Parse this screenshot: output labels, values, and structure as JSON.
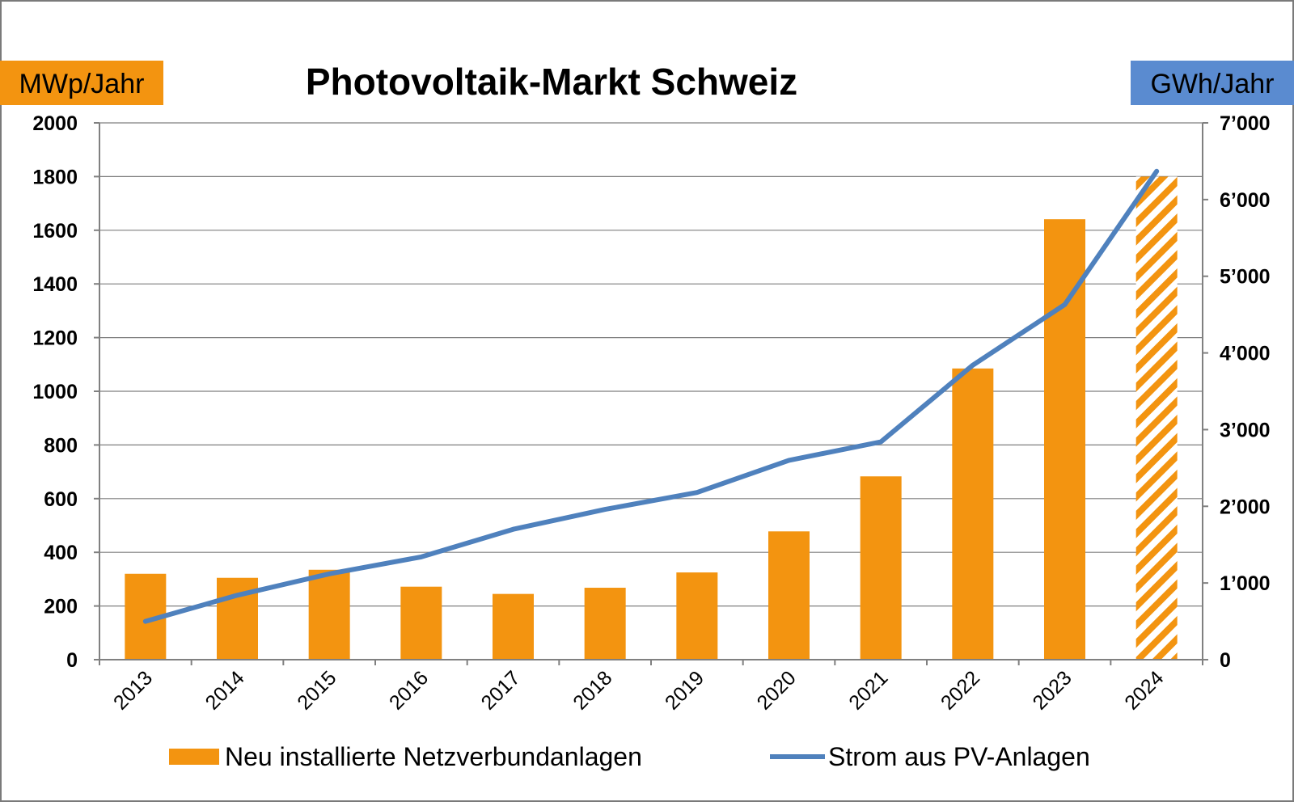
{
  "chart_data": {
    "type": "bar",
    "title": "Photovoltaik-Markt Schweiz",
    "categories": [
      "2013",
      "2014",
      "2015",
      "2016",
      "2017",
      "2018",
      "2019",
      "2020",
      "2021",
      "2022",
      "2023",
      "2024"
    ],
    "left_axis": {
      "label": "MWp/Jahr",
      "range": [
        0,
        2000
      ],
      "ticks": [
        "0",
        "200",
        "400",
        "600",
        "800",
        "1000",
        "1200",
        "1400",
        "1600",
        "1800",
        "2000"
      ]
    },
    "right_axis": {
      "label": "GWh/Jahr",
      "range": [
        0,
        7000
      ],
      "ticks": [
        "0",
        "1’000",
        "2’000",
        "3’000",
        "4’000",
        "5’000",
        "6’000",
        "7’000"
      ]
    },
    "series": [
      {
        "name": "Neu installierte Netzverbundanlagen",
        "type": "bar",
        "axis": "left",
        "color": "#F39410",
        "values": [
          320,
          305,
          335,
          272,
          245,
          268,
          325,
          478,
          683,
          1085,
          1641,
          1800
        ],
        "hatched_categories": [
          "2024"
        ]
      },
      {
        "name": "Strom aus PV-Anlagen",
        "type": "line",
        "axis": "right",
        "color": "#4F81BD",
        "values": [
          500,
          840,
          1120,
          1340,
          1700,
          1960,
          2180,
          2600,
          2840,
          3840,
          4630,
          6370
        ]
      }
    ],
    "grid": true,
    "legend_position": "bottom",
    "colors": {
      "left_label_bg": "#F39410",
      "right_label_bg": "#5A8BD0",
      "grid": "#7F7F7F",
      "axis": "#808080"
    }
  }
}
